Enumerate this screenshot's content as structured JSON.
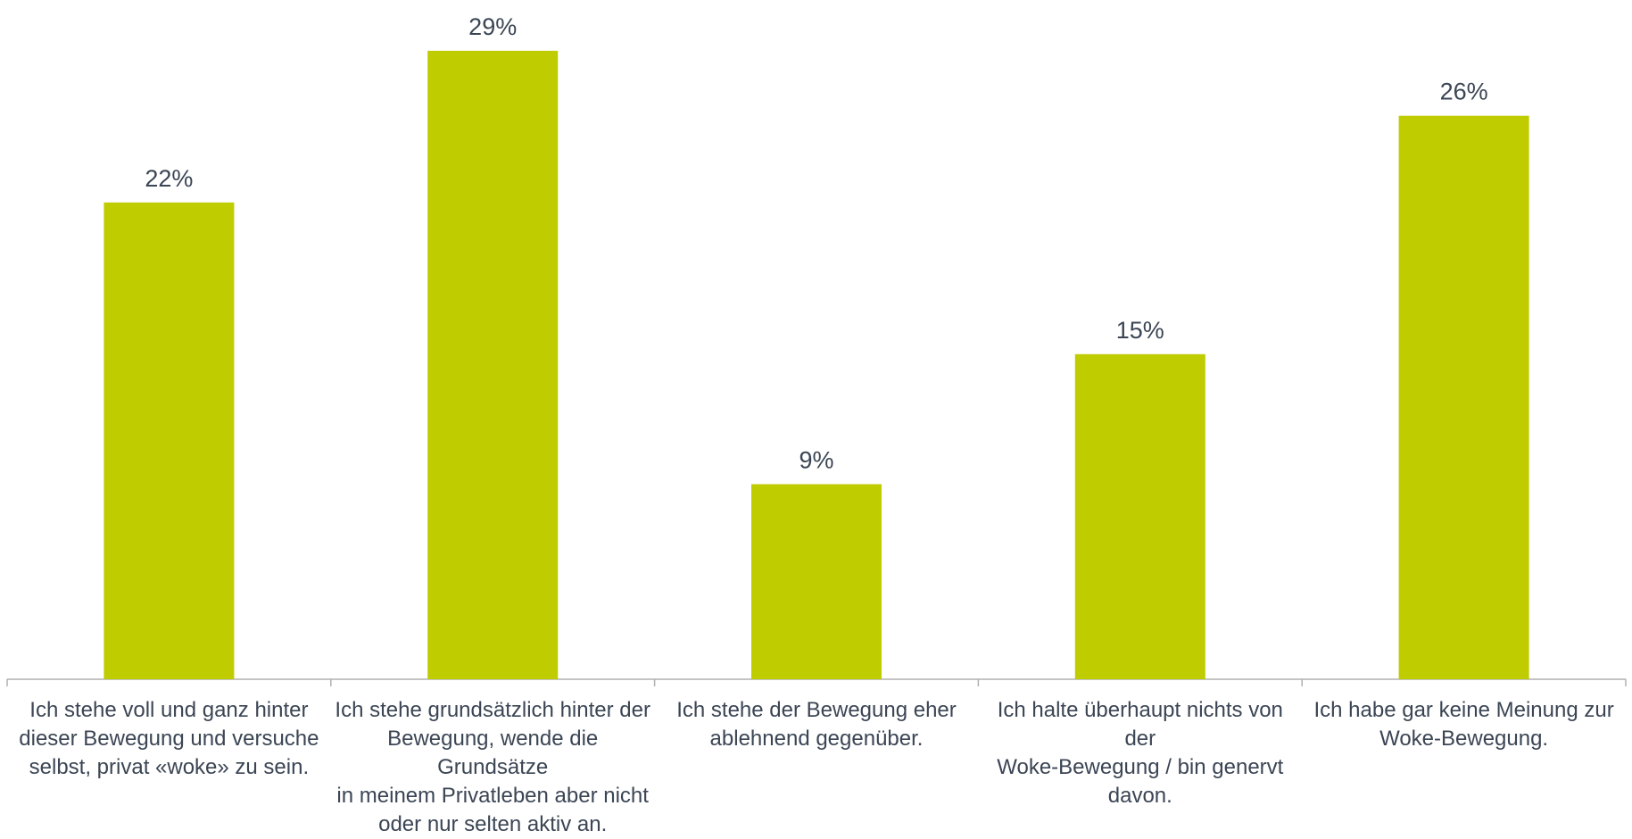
{
  "chart_data": {
    "type": "bar",
    "categories": [
      "Ich stehe voll und ganz hinter dieser Bewegung und versuche selbst, privat «woke» zu sein.",
      "Ich stehe grundsätzlich hinter der Bewegung, wende die Grundsätze in meinem Privatleben aber nicht oder nur selten aktiv an.",
      "Ich stehe der Bewegung eher ablehnend gegenüber.",
      "Ich halte überhaupt nichts von der Woke-Bewegung / bin genervt davon.",
      "Ich habe gar keine Meinung zur Woke-Bewegung."
    ],
    "category_lines": [
      [
        "Ich stehe voll und ganz hinter",
        "dieser Bewegung und versuche",
        "selbst, privat «woke» zu sein."
      ],
      [
        "Ich stehe grundsätzlich hinter der",
        "Bewegung, wende die Grundsätze",
        "in meinem Privatleben aber nicht",
        "oder nur selten aktiv an."
      ],
      [
        "Ich stehe der Bewegung eher",
        "ablehnend gegenüber."
      ],
      [
        "Ich halte überhaupt nichts von der",
        "Woke-Bewegung / bin genervt",
        "davon."
      ],
      [
        "Ich habe gar keine Meinung zur",
        "Woke-Bewegung."
      ]
    ],
    "values": [
      22,
      29,
      9,
      15,
      26
    ],
    "value_labels": [
      "22%",
      "29%",
      "9%",
      "15%",
      "26%"
    ],
    "unit": "%",
    "ylim": [
      0,
      30
    ],
    "grid": false,
    "legend": "none",
    "bar_color": "#bfcc00",
    "axis_color": "#b0b0b0",
    "text_color": "#3b4554"
  }
}
